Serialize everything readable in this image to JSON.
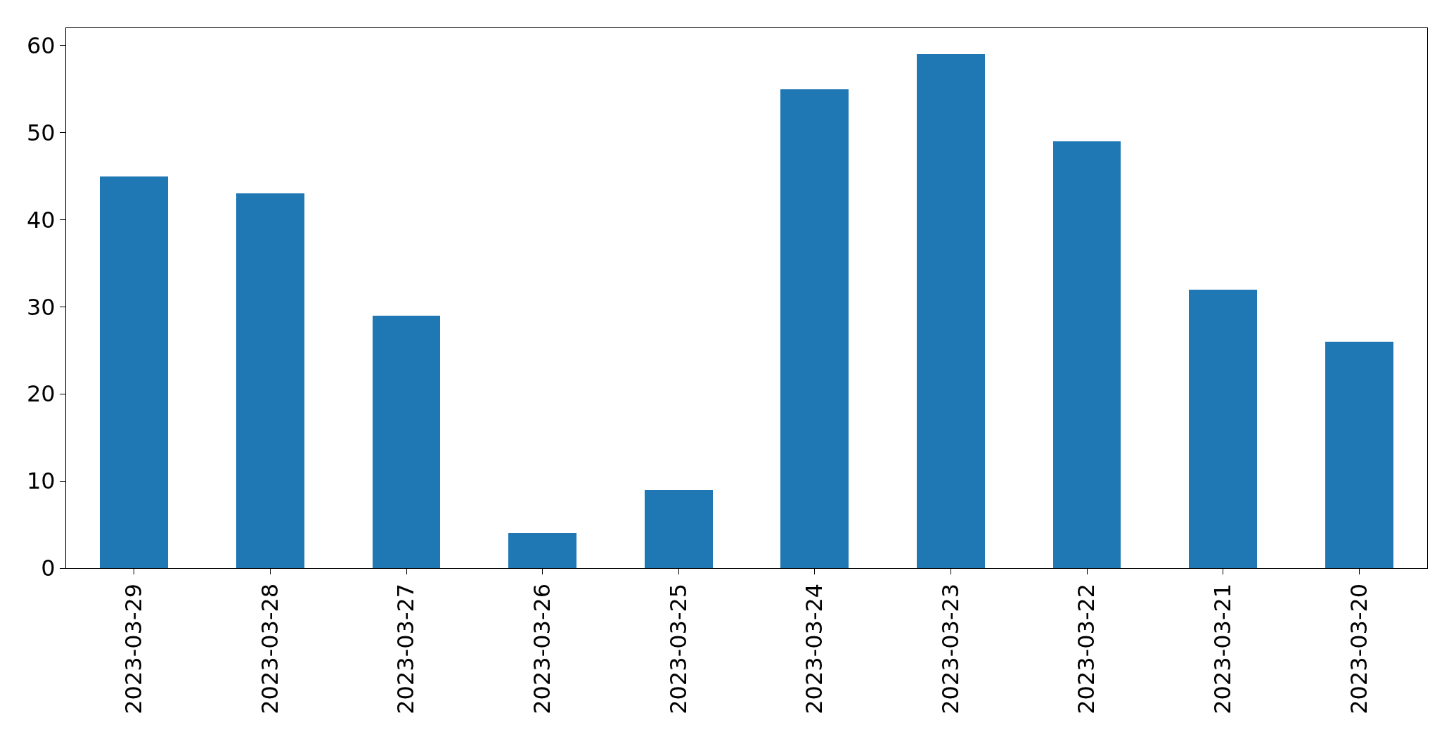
{
  "chart_data": {
    "type": "bar",
    "categories": [
      "2023-03-29",
      "2023-03-28",
      "2023-03-27",
      "2023-03-26",
      "2023-03-25",
      "2023-03-24",
      "2023-03-23",
      "2023-03-22",
      "2023-03-21",
      "2023-03-20"
    ],
    "values": [
      45,
      43,
      29,
      4,
      9,
      55,
      59,
      49,
      32,
      26
    ],
    "color": "#1f77b4",
    "ylim": [
      0,
      62
    ],
    "yticks": [
      0,
      10,
      20,
      30,
      40,
      50,
      60
    ]
  }
}
